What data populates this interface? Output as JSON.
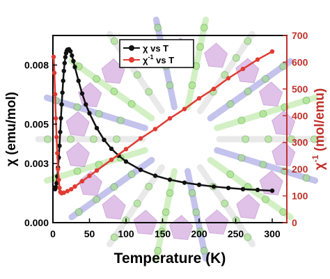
{
  "colors": {
    "chi": "#111111",
    "chi_inv": "#e03a32",
    "right_axis": "#c0302a",
    "crystal_purple": "#c78fd6",
    "crystal_green": "#9fe07f",
    "crystal_blue": "#7b7bd6",
    "crystal_grey": "#cfcfcf"
  },
  "background_image": "crystal-structure-illustration",
  "chart_data": {
    "type": "line",
    "xlabel": "Temperature (K)",
    "ylabel_left": "χ (emu/mol)",
    "ylabel_right_base": "χ",
    "ylabel_right_sup": "-1",
    "ylabel_right_unit": " (mol/emu)",
    "xlim": [
      0,
      320
    ],
    "ylim_left": [
      0,
      0.0095
    ],
    "ylim_right": [
      0,
      700
    ],
    "x_ticks": [
      0,
      50,
      100,
      150,
      200,
      250,
      300
    ],
    "x_tick_labels": [
      "0",
      "50",
      "100",
      "150",
      "200",
      "250",
      "300"
    ],
    "y_left_ticks": [
      0,
      0.003,
      0.005,
      0.008
    ],
    "y_left_tick_labels": [
      "0.000",
      "0.003",
      "0.005",
      "0.008"
    ],
    "y_right_ticks": [
      0,
      100,
      200,
      300,
      400,
      500,
      600,
      700
    ],
    "y_right_tick_labels": [
      "0",
      "100",
      "200",
      "300",
      "400",
      "500",
      "600",
      "700"
    ],
    "legend": {
      "placement": "top-center",
      "entries": [
        {
          "base": "χ",
          "sup": "",
          "rest": " vs T"
        },
        {
          "base": "χ",
          "sup": "-1",
          "rest": " vs T"
        }
      ]
    },
    "series": [
      {
        "axis": "left",
        "x": [
          2,
          3,
          4,
          5,
          6,
          7,
          8,
          9,
          10,
          11,
          12,
          13,
          14,
          15,
          16,
          17,
          18,
          19,
          20,
          22,
          24,
          26,
          28,
          30,
          35,
          40,
          45,
          50,
          60,
          70,
          80,
          90,
          100,
          120,
          140,
          160,
          180,
          200,
          220,
          240,
          260,
          280,
          300
        ],
        "values": [
          0.00178,
          0.0017,
          0.0018,
          0.002,
          0.00235,
          0.0028,
          0.0033,
          0.0039,
          0.0046,
          0.0053,
          0.006,
          0.0066,
          0.0072,
          0.0077,
          0.0081,
          0.0084,
          0.0086,
          0.00872,
          0.00878,
          0.0088,
          0.0087,
          0.00848,
          0.0082,
          0.0079,
          0.0072,
          0.00655,
          0.006,
          0.00555,
          0.0048,
          0.0042,
          0.00375,
          0.0034,
          0.0031,
          0.00268,
          0.00238,
          0.00218,
          0.00203,
          0.00192,
          0.00183,
          0.00176,
          0.0017,
          0.00166,
          0.00162
        ]
      },
      {
        "axis": "right",
        "x": [
          1,
          2,
          3,
          4,
          5,
          6,
          7,
          8,
          9,
          10,
          12,
          15,
          20,
          25,
          30,
          40,
          50,
          60,
          80,
          100,
          120,
          140,
          160,
          180,
          200,
          220,
          240,
          260,
          280,
          300
        ],
        "values": [
          620,
          560,
          480,
          390,
          320,
          260,
          200,
          160,
          130,
          115,
          110,
          112,
          118,
          125,
          135,
          155,
          175,
          195,
          235,
          275,
          315,
          350,
          390,
          425,
          465,
          500,
          540,
          575,
          610,
          640
        ]
      }
    ]
  }
}
